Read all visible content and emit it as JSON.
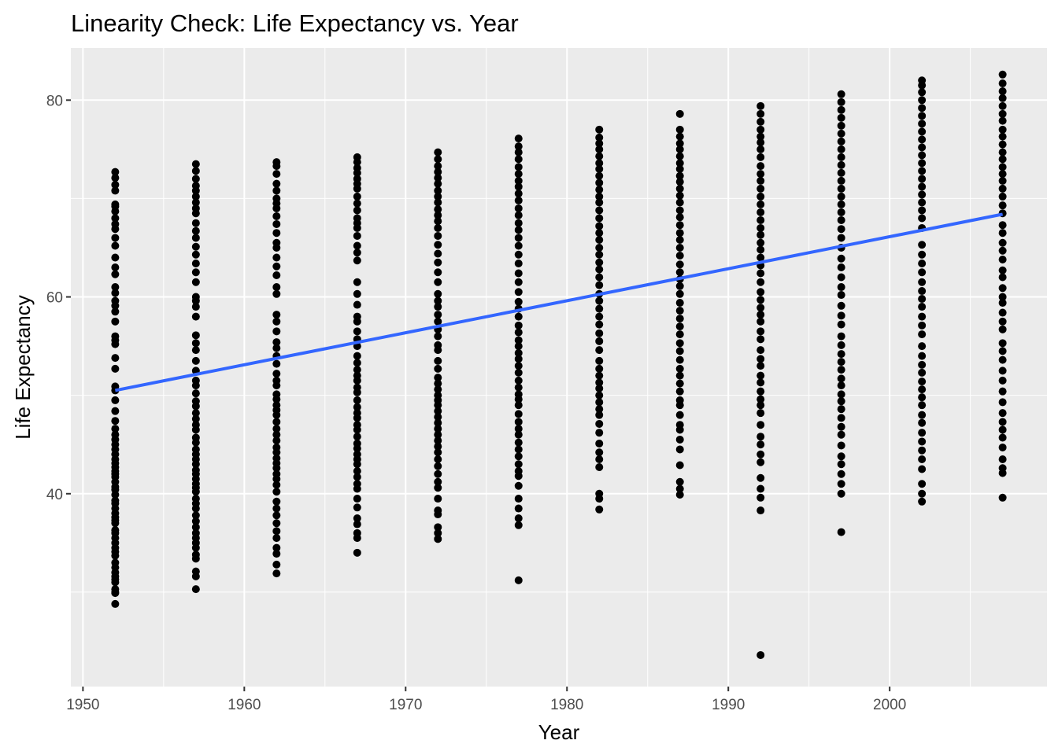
{
  "chart_data": {
    "type": "scatter",
    "title": "Linearity Check: Life Expectancy vs. Year",
    "xlabel": "Year",
    "ylabel": "Life Expectancy",
    "xlim": [
      1949.25,
      2009.75
    ],
    "ylim": [
      20.4,
      85.3
    ],
    "x_ticks": [
      1950,
      1960,
      1970,
      1980,
      1990,
      2000
    ],
    "y_ticks": [
      40,
      60,
      80
    ],
    "grid": true,
    "legend": "none",
    "colors": {
      "panel": "#ebebeb",
      "grid": "#ffffff",
      "points": "#000000",
      "trend": "#3366ff",
      "tick_text": "#4d4d4d"
    },
    "series": [
      {
        "type": "scatter",
        "columns": [
          {
            "x": 1952,
            "y": [
              28.8,
              29.9,
              30.0,
              30.3,
              31.0,
              31.3,
              31.6,
              32.0,
              32.5,
              33.0,
              33.7,
              34.1,
              34.5,
              35.0,
              35.5,
              36.0,
              36.3,
              37.0,
              37.3,
              37.6,
              38.0,
              38.5,
              39.0,
              39.3,
              39.9,
              40.4,
              40.7,
              41.2,
              41.7,
              42.0,
              42.3,
              42.7,
              43.1,
              43.5,
              44.0,
              44.5,
              45.0,
              45.5,
              46.0,
              46.6,
              47.4,
              48.4,
              49.5,
              50.5,
              50.9,
              52.7,
              53.8,
              55.2,
              55.6,
              56.0,
              57.5,
              58.5,
              59.1,
              59.6,
              60.4,
              61.0,
              62.3,
              63.0,
              64.0,
              65.2,
              66.0,
              66.9,
              67.4,
              68.0,
              68.7,
              69.2,
              69.4,
              70.8,
              71.4,
              72.1,
              72.7
            ]
          },
          {
            "x": 1957,
            "y": [
              30.3,
              31.6,
              32.1,
              33.4,
              33.8,
              34.5,
              35.0,
              35.5,
              36.0,
              36.6,
              37.2,
              37.8,
              38.5,
              39.0,
              39.5,
              40.2,
              40.6,
              41.0,
              41.5,
              42.0,
              42.4,
              43.0,
              43.5,
              44.0,
              44.5,
              45.2,
              45.7,
              46.5,
              47.0,
              47.6,
              48.2,
              48.9,
              49.4,
              50.2,
              51.0,
              51.5,
              52.5,
              53.5,
              54.6,
              55.3,
              56.1,
              58.0,
              59.0,
              59.6,
              60.0,
              61.5,
              62.5,
              63.4,
              64.3,
              65.1,
              66.0,
              66.7,
              67.5,
              68.5,
              69.0,
              69.6,
              70.2,
              70.8,
              71.3,
              72.0,
              72.8,
              73.5
            ]
          },
          {
            "x": 1962,
            "y": [
              31.9,
              32.8,
              33.9,
              34.5,
              35.5,
              36.2,
              37.0,
              37.8,
              38.5,
              39.2,
              40.2,
              40.9,
              41.5,
              42.0,
              42.6,
              43.1,
              43.6,
              44.2,
              44.7,
              45.4,
              46.0,
              46.6,
              47.3,
              48.0,
              48.5,
              49.0,
              49.6,
              50.1,
              51.0,
              51.5,
              52.2,
              53.2,
              54.0,
              54.8,
              55.4,
              56.5,
              57.5,
              58.2,
              60.3,
              61.0,
              62.2,
              63.1,
              64.0,
              65.0,
              65.5,
              66.5,
              67.4,
              68.2,
              69.0,
              69.5,
              70.0,
              70.8,
              71.5,
              72.5,
              73.3,
              73.7
            ]
          },
          {
            "x": 1967,
            "y": [
              34.0,
              35.5,
              36.0,
              36.9,
              37.5,
              38.6,
              39.5,
              40.5,
              41.0,
              41.7,
              42.3,
              43.0,
              43.5,
              44.0,
              44.6,
              45.1,
              45.8,
              46.5,
              47.0,
              47.7,
              48.2,
              48.8,
              49.5,
              50.3,
              50.8,
              51.5,
              52.0,
              52.6,
              53.3,
              54.0,
              55.0,
              55.7,
              56.5,
              57.5,
              58.0,
              59.2,
              60.3,
              61.5,
              63.7,
              64.5,
              65.2,
              66.2,
              67.0,
              67.5,
              68.0,
              68.8,
              69.5,
              70.2,
              71.0,
              71.5,
              72.0,
              72.6,
              73.1,
              73.7,
              74.2
            ]
          },
          {
            "x": 1972,
            "y": [
              35.4,
              36.0,
              36.6,
              37.9,
              38.3,
              39.5,
              40.6,
              41.2,
              42.0,
              42.8,
              43.5,
              44.2,
              44.8,
              45.4,
              46.0,
              46.6,
              47.2,
              47.8,
              48.4,
              49.0,
              49.5,
              50.0,
              50.6,
              51.2,
              51.8,
              52.7,
              53.5,
              54.6,
              55.1,
              56.0,
              56.7,
              57.5,
              58.2,
              59.0,
              59.6,
              60.3,
              61.5,
              62.5,
              63.5,
              64.4,
              65.3,
              66.2,
              67.0,
              67.7,
              68.3,
              68.9,
              69.6,
              70.2,
              70.8,
              71.5,
              72.1,
              72.7,
              73.3,
              74.0,
              74.7
            ]
          },
          {
            "x": 1977,
            "y": [
              31.2,
              36.8,
              37.5,
              38.5,
              39.5,
              40.8,
              41.8,
              42.3,
              43.0,
              43.8,
              44.5,
              45.2,
              46.0,
              46.6,
              47.3,
              48.1,
              49.0,
              49.6,
              50.1,
              50.8,
              51.5,
              52.3,
              53.0,
              53.7,
              54.3,
              55.0,
              55.6,
              56.4,
              57.1,
              58.0,
              58.8,
              59.5,
              60.5,
              61.5,
              62.4,
              63.4,
              64.3,
              65.2,
              66.0,
              66.8,
              67.5,
              68.3,
              69.0,
              69.8,
              70.5,
              71.2,
              71.8,
              72.5,
              73.2,
              74.0,
              74.7,
              75.3,
              76.1
            ]
          },
          {
            "x": 1982,
            "y": [
              38.4,
              39.5,
              40.0,
              42.7,
              43.5,
              44.2,
              45.1,
              46.2,
              47.1,
              48.0,
              48.6,
              49.3,
              50.0,
              50.7,
              51.3,
              52.0,
              52.7,
              53.5,
              54.6,
              55.5,
              56.3,
              57.2,
              58.0,
              58.8,
              59.6,
              60.3,
              61.2,
              62.0,
              62.8,
              63.5,
              64.3,
              65.0,
              65.8,
              66.5,
              67.2,
              68.0,
              68.8,
              69.6,
              70.2,
              70.9,
              71.6,
              72.3,
              73.0,
              73.6,
              74.3,
              75.0,
              75.6,
              76.2,
              77.0
            ]
          },
          {
            "x": 1987,
            "y": [
              39.9,
              40.5,
              41.2,
              42.9,
              44.5,
              45.5,
              46.5,
              47.0,
              48.0,
              49.0,
              49.5,
              50.4,
              51.2,
              52.0,
              52.7,
              53.6,
              54.5,
              55.3,
              56.2,
              57.0,
              57.8,
              58.6,
              59.4,
              60.3,
              61.1,
              61.8,
              62.5,
              63.3,
              64.2,
              65.0,
              65.8,
              66.5,
              67.3,
              68.1,
              68.8,
              69.6,
              70.3,
              71.0,
              71.7,
              72.3,
              73.0,
              73.6,
              74.3,
              75.0,
              75.6,
              76.3,
              77.0,
              78.6
            ]
          },
          {
            "x": 1992,
            "y": [
              23.6,
              38.3,
              39.6,
              40.5,
              41.6,
              43.2,
              44.0,
              45.0,
              45.8,
              47.0,
              48.2,
              49.0,
              49.6,
              50.4,
              51.3,
              52.0,
              53.0,
              53.7,
              54.6,
              55.7,
              56.5,
              57.5,
              58.2,
              58.9,
              59.7,
              60.5,
              61.5,
              62.4,
              63.2,
              64.0,
              64.8,
              65.5,
              66.3,
              67.0,
              67.8,
              68.6,
              69.4,
              70.2,
              71.0,
              71.8,
              72.5,
              73.3,
              74.2,
              75.0,
              75.7,
              76.3,
              77.0,
              77.8,
              78.6,
              79.4
            ]
          },
          {
            "x": 1997,
            "y": [
              36.1,
              40.0,
              41.0,
              42.0,
              43.0,
              43.8,
              44.9,
              46.0,
              46.8,
              47.7,
              48.6,
              49.4,
              50.1,
              51.0,
              51.7,
              52.6,
              53.4,
              54.2,
              55.1,
              56.0,
              57.2,
              58.1,
              59.1,
              60.2,
              61.0,
              62.0,
              63.0,
              63.9,
              65.0,
              66.0,
              66.9,
              67.8,
              68.6,
              69.4,
              70.2,
              71.0,
              71.8,
              72.6,
              73.4,
              74.2,
              75.0,
              75.8,
              76.6,
              77.4,
              78.2,
              79.0,
              79.8,
              80.6
            ]
          },
          {
            "x": 2002,
            "y": [
              39.2,
              40.0,
              41.0,
              42.5,
              43.5,
              44.4,
              45.3,
              46.2,
              47.2,
              48.0,
              49.0,
              49.8,
              50.6,
              51.4,
              52.3,
              53.1,
              54.0,
              55.0,
              56.2,
              57.1,
              58.0,
              59.0,
              59.8,
              60.6,
              61.5,
              62.5,
              63.4,
              64.3,
              65.3,
              67.0,
              68.0,
              68.8,
              69.6,
              70.4,
              71.2,
              72.0,
              72.8,
              73.6,
              74.4,
              75.2,
              76.0,
              76.8,
              77.6,
              78.4,
              79.2,
              80.0,
              80.8,
              81.5,
              82.0
            ]
          },
          {
            "x": 2007,
            "y": [
              39.6,
              42.1,
              42.6,
              43.5,
              44.7,
              45.7,
              46.5,
              47.3,
              48.2,
              49.3,
              50.4,
              51.5,
              52.5,
              53.6,
              54.5,
              55.3,
              56.7,
              57.5,
              58.4,
              59.4,
              60.0,
              60.9,
              62.0,
              62.7,
              63.8,
              64.7,
              65.5,
              66.5,
              67.3,
              68.5,
              69.3,
              70.2,
              71.0,
              71.8,
              72.5,
              73.2,
              74.0,
              74.7,
              75.5,
              76.3,
              77.0,
              77.9,
              78.6,
              79.4,
              80.2,
              80.9,
              81.7,
              82.6
            ]
          }
        ]
      },
      {
        "type": "line",
        "x": [
          1952,
          2007
        ],
        "y": [
          50.5,
          68.4
        ]
      }
    ]
  }
}
